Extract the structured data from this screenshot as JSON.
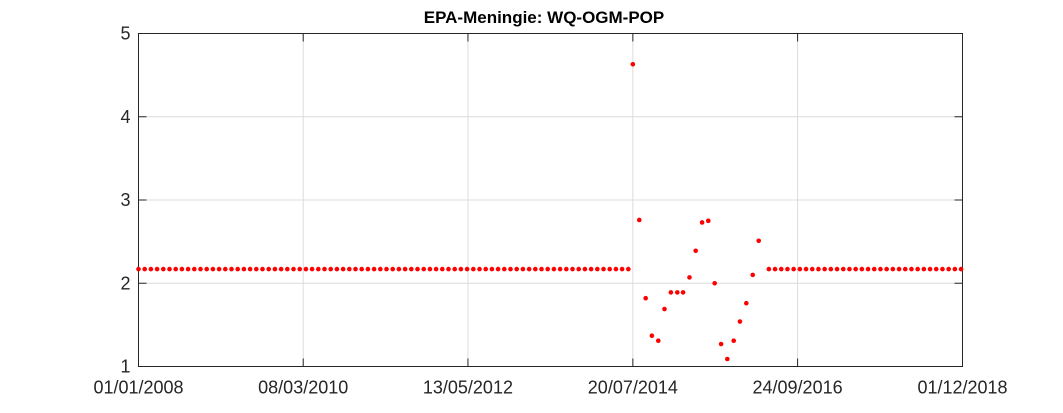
{
  "chart_data": {
    "type": "scatter",
    "title": "EPA-Meningie: WQ-OGM-POP",
    "xlabel": "",
    "ylabel": "",
    "x_axis_type": "date",
    "xlim": [
      "2008-01-01",
      "2018-12-01"
    ],
    "ylim": [
      1,
      5
    ],
    "xticks": [
      {
        "date": "2008-01-01",
        "label": "01/01/2008"
      },
      {
        "date": "2010-03-08",
        "label": "08/03/2010"
      },
      {
        "date": "2012-05-13",
        "label": "13/05/2012"
      },
      {
        "date": "2014-07-20",
        "label": "20/07/2014"
      },
      {
        "date": "2016-09-24",
        "label": "24/09/2016"
      },
      {
        "date": "2018-12-01",
        "label": "01/12/2018"
      }
    ],
    "yticks": [
      1,
      2,
      3,
      4,
      5
    ],
    "grid": true,
    "marker_color": "#ff0000",
    "constant_segments": [
      {
        "start": "2008-01-01",
        "end": "2014-07-20",
        "value": 2.17,
        "step_days": 30
      },
      {
        "start": "2016-05-08",
        "end": "2018-12-01",
        "value": 2.17,
        "step_days": 30
      }
    ],
    "points": [
      {
        "x": "2014-07-20",
        "y": 4.63
      },
      {
        "x": "2014-08-20",
        "y": 2.76
      },
      {
        "x": "2014-09-20",
        "y": 1.82
      },
      {
        "x": "2014-10-20",
        "y": 1.37
      },
      {
        "x": "2014-11-20",
        "y": 1.31
      },
      {
        "x": "2014-12-20",
        "y": 1.69
      },
      {
        "x": "2015-01-20",
        "y": 1.89
      },
      {
        "x": "2015-02-20",
        "y": 1.89
      },
      {
        "x": "2015-03-20",
        "y": 1.89
      },
      {
        "x": "2015-04-20",
        "y": 2.07
      },
      {
        "x": "2015-05-20",
        "y": 2.39
      },
      {
        "x": "2015-06-20",
        "y": 2.73
      },
      {
        "x": "2015-07-20",
        "y": 2.75
      },
      {
        "x": "2015-08-20",
        "y": 2.0
      },
      {
        "x": "2015-09-20",
        "y": 1.27
      },
      {
        "x": "2015-10-20",
        "y": 1.09
      },
      {
        "x": "2015-11-20",
        "y": 1.31
      },
      {
        "x": "2015-12-20",
        "y": 1.54
      },
      {
        "x": "2016-01-20",
        "y": 1.76
      },
      {
        "x": "2016-02-20",
        "y": 2.1
      },
      {
        "x": "2016-03-20",
        "y": 2.51
      }
    ]
  }
}
